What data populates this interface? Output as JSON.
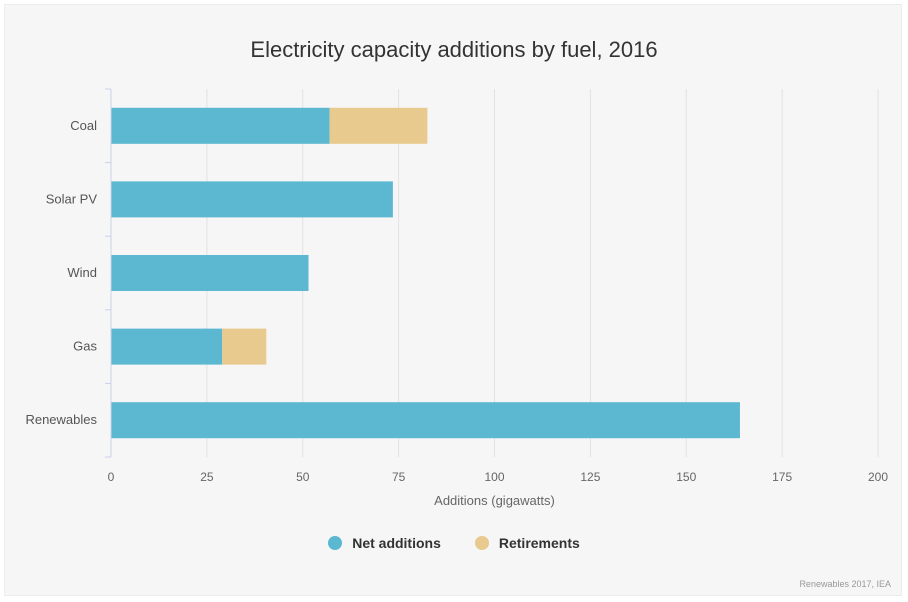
{
  "chart_data": {
    "type": "bar",
    "orientation": "horizontal",
    "stacked": true,
    "title": "Electricity capacity additions by fuel, 2016",
    "xlabel": "Additions (gigawatts)",
    "ylabel": "",
    "categories": [
      "Coal",
      "Solar PV",
      "Wind",
      "Gas",
      "Renewables"
    ],
    "series": [
      {
        "name": "Net additions",
        "color": "#5bb8d0",
        "values": [
          57,
          73.5,
          51.5,
          29,
          164
        ]
      },
      {
        "name": "Retirements",
        "color": "#e8c98e",
        "values": [
          25.5,
          0,
          0,
          11.5,
          0
        ]
      }
    ],
    "xlim": [
      0,
      200
    ],
    "xticks": [
      "0",
      "25",
      "50",
      "75",
      "100",
      "125",
      "150",
      "175",
      "200"
    ],
    "grid": true,
    "legend_position": "bottom-center"
  },
  "source": "Renewables 2017, IEA"
}
